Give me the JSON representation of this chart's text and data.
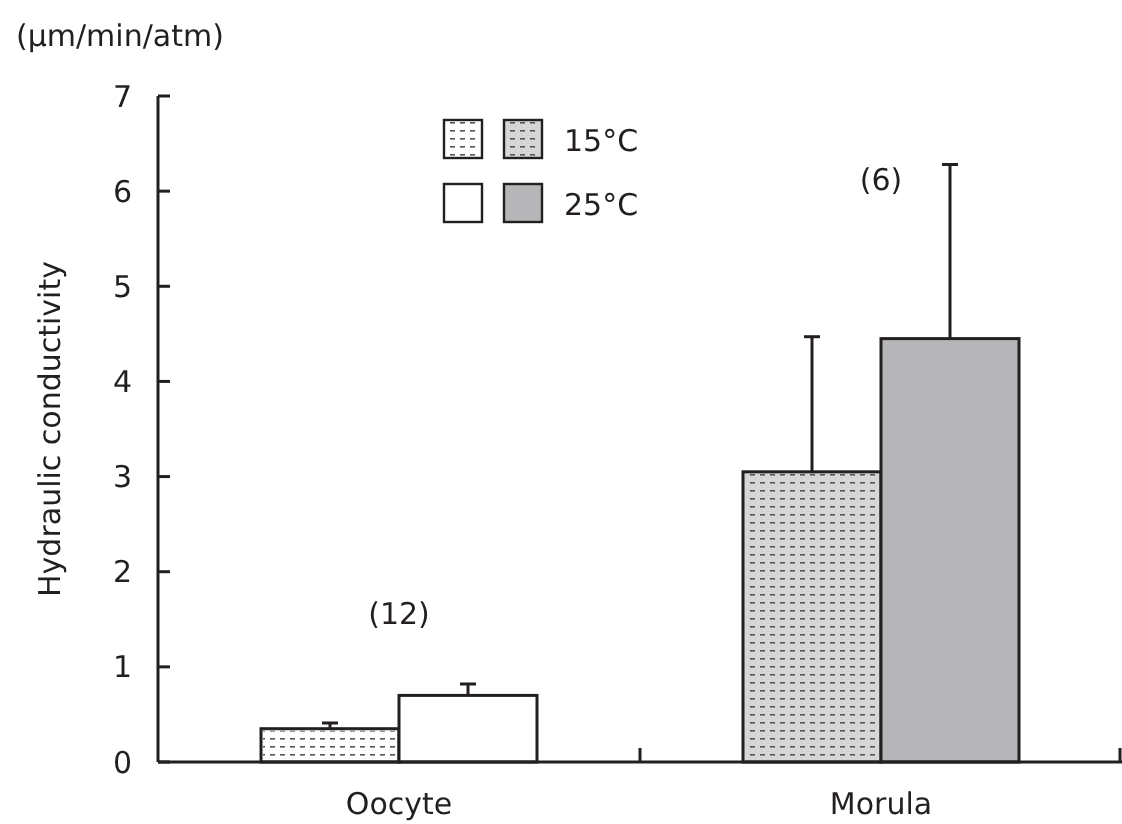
{
  "chart_data": {
    "type": "bar",
    "ylabel": "Hydraulic conductivity",
    "categories": [
      "Oocyte",
      "Morula"
    ],
    "series": [
      {
        "name": "15°C",
        "colors": [
          "#ffffff",
          "#d6d6d8"
        ],
        "values": [
          0.35,
          3.05
        ],
        "errors": [
          [
            0.35,
            0.41
          ],
          [
            3.05,
            4.47
          ]
        ]
      },
      {
        "name": "25°C",
        "colors": [
          "#ffffff",
          "#b6b6b9"
        ],
        "values": [
          0.7,
          4.45
        ],
        "errors": [
          [
            0.7,
            0.82
          ],
          [
            4.45,
            6.28
          ]
        ]
      }
    ],
    "ylim": [
      0,
      7
    ],
    "yticks": [
      0,
      1,
      2,
      3,
      4,
      5,
      6,
      7
    ],
    "grid": false,
    "legend": "top",
    "annotations": [
      "(μm/min/atm)",
      "(12)",
      "(6)"
    ]
  }
}
